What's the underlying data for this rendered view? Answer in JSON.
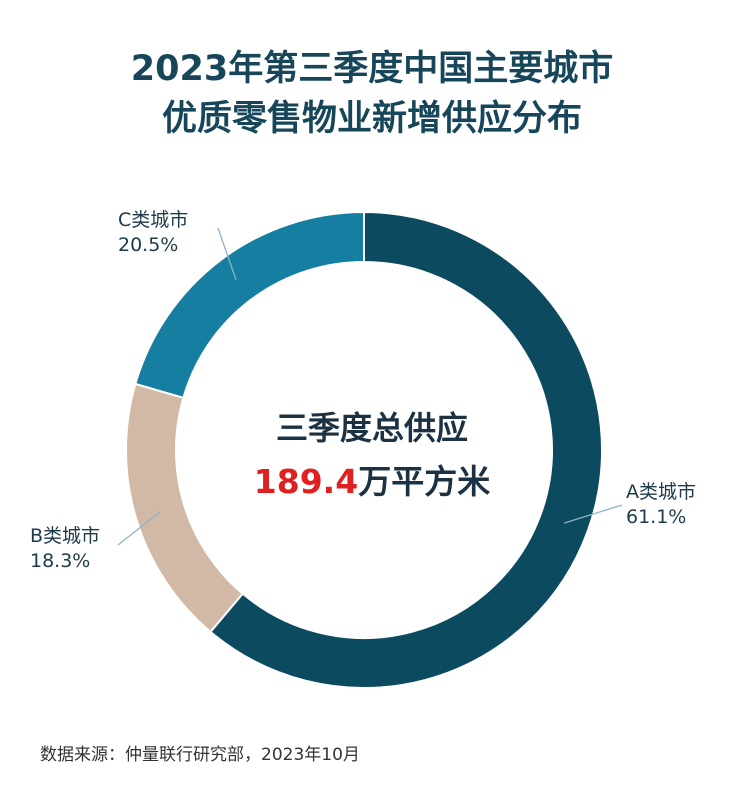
{
  "chart_data": {
    "type": "pie",
    "donut": true,
    "title_line1": "2023年第三季度中国主要城市",
    "title_line2": "优质零售物业新增供应分布",
    "center_title": "三季度总供应",
    "center_value": "189.4",
    "center_unit": "万平方米",
    "slices": [
      {
        "name": "A类城市",
        "label": "61.1%",
        "value": 61.1,
        "color": "#0c4a60"
      },
      {
        "name": "B类城市",
        "label": "18.3%",
        "value": 18.3,
        "color": "#d2b9a6"
      },
      {
        "name": "C类城市",
        "label": "20.5%",
        "value": 20.5,
        "color": "#167ea1"
      }
    ]
  },
  "source": "数据来源：仲量联行研究部，2023年10月"
}
